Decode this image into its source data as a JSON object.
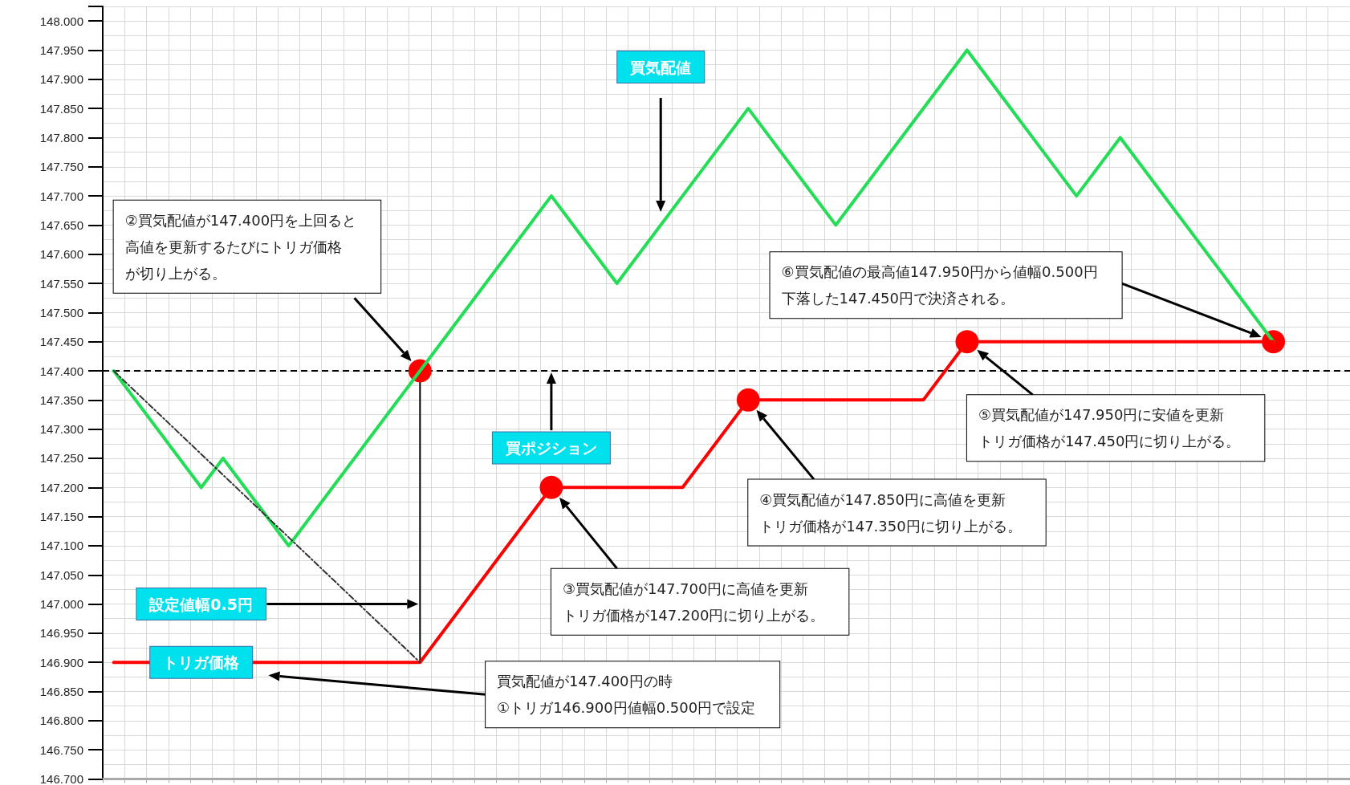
{
  "chart_data": {
    "type": "line",
    "categories": [
      null,
      null,
      null,
      null,
      null,
      null,
      null,
      null,
      null,
      null,
      null,
      null,
      null,
      null,
      null,
      null,
      null,
      null,
      null,
      null,
      null,
      null,
      null,
      null,
      null,
      null,
      null,
      null,
      null,
      null,
      null,
      null,
      null,
      null,
      null,
      null,
      null,
      null,
      null,
      null,
      null,
      null,
      null,
      null,
      null,
      null,
      null,
      null,
      null,
      null,
      null,
      null,
      null,
      null,
      null,
      null,
      null
    ],
    "ylim": [
      146.7,
      148.025
    ],
    "yticks": [
      {
        "value": 146.7,
        "label": "146.700"
      },
      {
        "value": 146.75,
        "label": "146.750"
      },
      {
        "value": 146.8,
        "label": "146.800"
      },
      {
        "value": 146.85,
        "label": "146.850"
      },
      {
        "value": 146.9,
        "label": "146.900"
      },
      {
        "value": 146.95,
        "label": "146.950"
      },
      {
        "value": 147.0,
        "label": "147.000"
      },
      {
        "value": 147.05,
        "label": "147.050"
      },
      {
        "value": 147.1,
        "label": "147.100"
      },
      {
        "value": 147.15,
        "label": "147.150"
      },
      {
        "value": 147.2,
        "label": "147.200"
      },
      {
        "value": 147.25,
        "label": "147.250"
      },
      {
        "value": 147.3,
        "label": "147.300"
      },
      {
        "value": 147.35,
        "label": "147.350"
      },
      {
        "value": 147.4,
        "label": "147.400"
      },
      {
        "value": 147.45,
        "label": "147.450"
      },
      {
        "value": 147.5,
        "label": "147.500"
      },
      {
        "value": 147.55,
        "label": "147.550"
      },
      {
        "value": 147.6,
        "label": "147.600"
      },
      {
        "value": 147.65,
        "label": "147.650"
      },
      {
        "value": 147.7,
        "label": "147.700"
      },
      {
        "value": 147.75,
        "label": "147.750"
      },
      {
        "value": 147.8,
        "label": "147.800"
      },
      {
        "value": 147.85,
        "label": "147.850"
      },
      {
        "value": 147.9,
        "label": "147.900"
      },
      {
        "value": 147.95,
        "label": "147.950"
      },
      {
        "value": 148.0,
        "label": "148.000"
      }
    ],
    "tick_labels": "y",
    "grid": true,
    "series": [
      {
        "color": "#22dd55",
        "marker": "none",
        "values": [
          147.4,
          null,
          null,
          null,
          147.2,
          147.25,
          null,
          null,
          147.1,
          null,
          null,
          null,
          null,
          null,
          147.4,
          null,
          null,
          null,
          null,
          null,
          147.7,
          null,
          null,
          147.55,
          null,
          null,
          null,
          null,
          null,
          147.85,
          null,
          null,
          null,
          147.65,
          null,
          null,
          null,
          null,
          null,
          147.95,
          null,
          null,
          null,
          null,
          147.7,
          null,
          147.8,
          null,
          null,
          null,
          null,
          null,
          null,
          147.45,
          null,
          null,
          null
        ]
      },
      {
        "color": "#ff0000",
        "marker": "none",
        "values": [
          146.9,
          null,
          null,
          null,
          null,
          null,
          null,
          null,
          null,
          null,
          null,
          null,
          null,
          null,
          146.9,
          null,
          null,
          null,
          null,
          null,
          147.2,
          null,
          null,
          null,
          null,
          null,
          147.2,
          null,
          null,
          147.35,
          null,
          null,
          null,
          null,
          null,
          null,
          null,
          147.35,
          null,
          147.45,
          null,
          null,
          null,
          null,
          null,
          null,
          null,
          null,
          null,
          null,
          null,
          null,
          null,
          147.45,
          null,
          null,
          null
        ]
      },
      {
        "type": "scatter",
        "color": "#ff0000",
        "marker": "circle",
        "values": [
          null,
          null,
          null,
          null,
          null,
          null,
          null,
          null,
          null,
          null,
          null,
          null,
          null,
          null,
          147.4,
          null,
          null,
          null,
          null,
          null,
          147.2,
          null,
          null,
          null,
          null,
          null,
          null,
          null,
          null,
          147.35,
          null,
          null,
          null,
          null,
          null,
          null,
          null,
          null,
          null,
          147.45,
          null,
          null,
          null,
          null,
          null,
          null,
          null,
          null,
          null,
          null,
          null,
          null,
          null,
          147.45,
          null,
          null,
          null
        ],
        "errors": [
          null,
          null,
          null,
          null,
          null,
          null,
          null,
          null,
          null,
          null,
          null,
          null,
          null,
          null,
          [
            146.9,
            147.4
          ],
          null,
          null,
          null,
          null,
          null,
          null,
          null,
          null,
          null,
          null,
          null,
          null,
          null,
          null,
          null,
          null,
          null,
          null,
          null,
          null,
          null,
          null,
          null,
          null,
          null,
          null,
          null,
          null,
          null,
          null,
          null,
          null,
          null,
          null,
          null,
          null,
          null,
          null,
          null,
          null,
          null,
          null
        ]
      },
      {
        "color": "#333333",
        "marker": "none",
        "line_style": "dashed",
        "values": [
          147.4,
          null,
          null,
          null,
          null,
          null,
          null,
          null,
          null,
          null,
          null,
          null,
          null,
          null,
          146.9,
          null,
          null,
          null,
          null,
          null,
          null,
          null,
          null,
          null,
          null,
          null,
          null,
          null,
          null,
          null,
          null,
          null,
          null,
          null,
          null,
          null,
          null,
          null,
          null,
          null,
          null,
          null,
          null,
          null,
          null,
          null,
          null,
          null,
          null,
          null,
          null,
          null,
          null,
          null,
          null,
          null,
          null
        ]
      }
    ],
    "ref_lines": [
      {
        "axis": "y",
        "value": 147.4,
        "color": "#000000",
        "line_style": "dashed"
      }
    ],
    "annotations": [
      "買気配値",
      "②買気配値が147.400円を上回ると高値を更新するたびにトリガ価格が切り上がる。",
      "買ポジション",
      "設定値幅0.5円",
      {
        "text": "トリガ価格",
        "y": 146.9
      },
      "買気配値が147.400円の時①トリガ146.900円値幅0.500円で設定",
      "③買気配値が147.700円に高値を更新トリガ価格が147.200円に切り上がる。",
      "④買気配値が147.850円に高値を更新トリガ価格が147.350円に切り上がる。",
      "⑤買気配値が147.950円に安値を更新トリガ価格が147.450円に切り上がる。",
      "⑥買気配値の最高値147.950円から値幅0.500円下落した147.450円で決済される。"
    ]
  }
}
